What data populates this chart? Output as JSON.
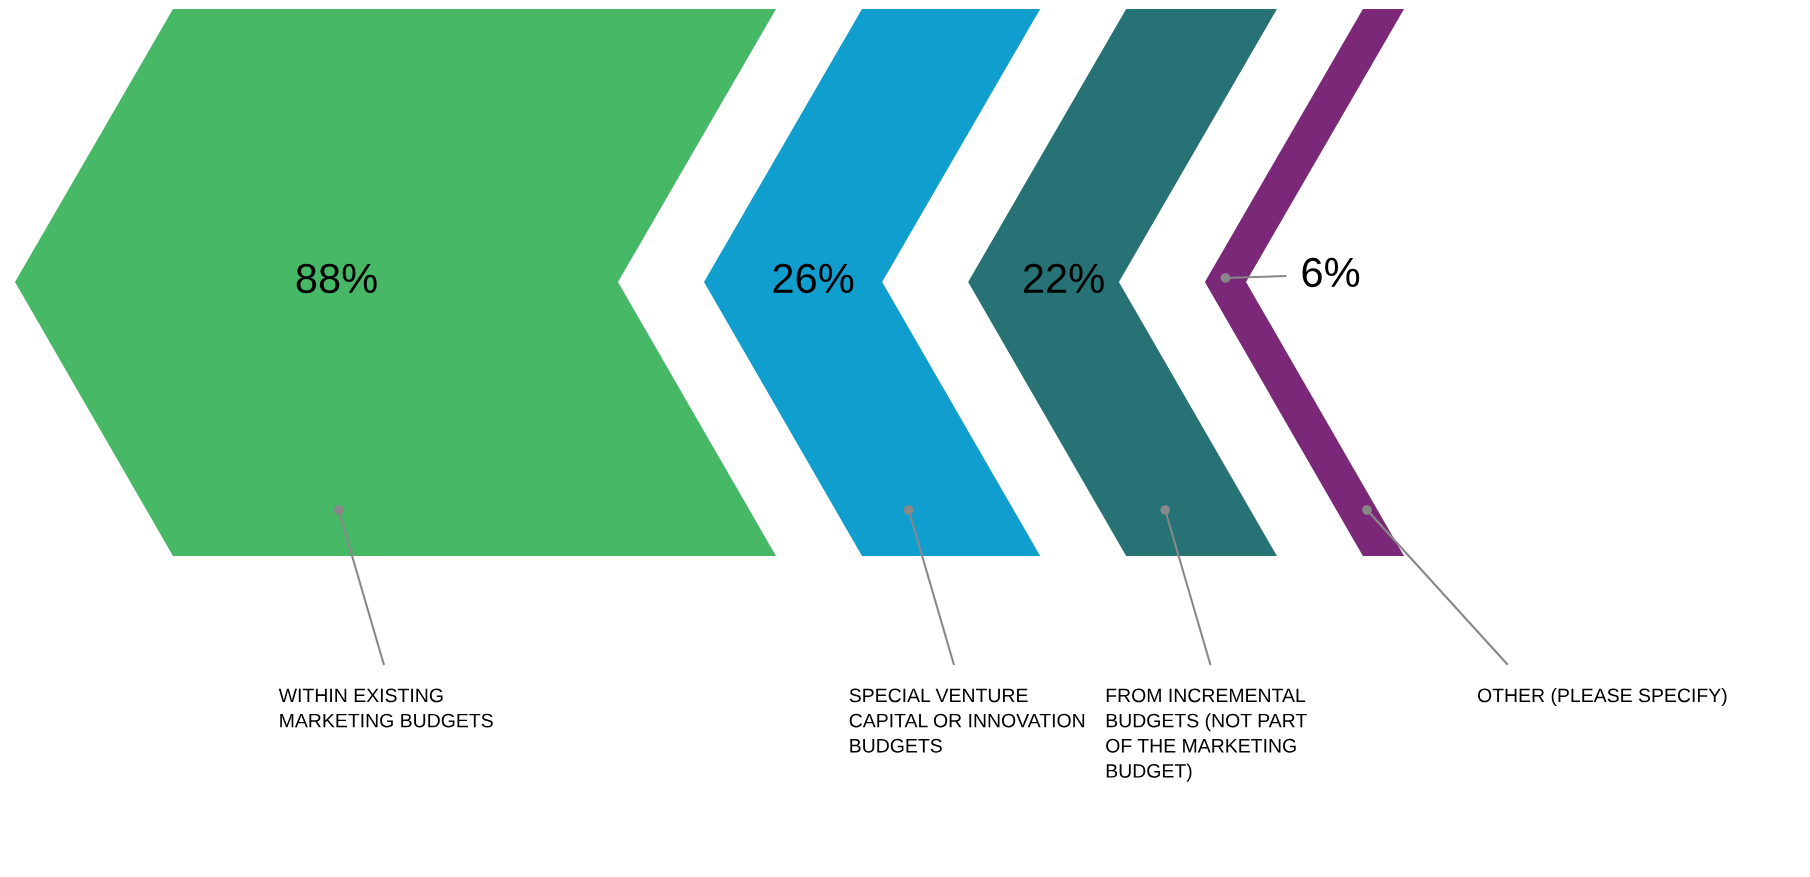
{
  "chart_data": {
    "type": "other",
    "categories": [
      "WITHIN EXISTING\nMARKETING BUDGETS",
      "SPECIAL VENTURE\nCAPITAL OR INNOVATION\nBUDGETS",
      "FROM INCREMENTAL\nBUDGETS (NOT PART\nOF THE MARKETING\nBUDGET)",
      "OTHER (PLEASE SPECIFY)"
    ],
    "values": [
      88,
      26,
      22,
      6
    ],
    "value_labels": [
      "88%",
      "26%",
      "22%",
      "6%"
    ],
    "colors": [
      "#46b866",
      "#109ecf",
      "#267275",
      "#7a2877"
    ]
  }
}
